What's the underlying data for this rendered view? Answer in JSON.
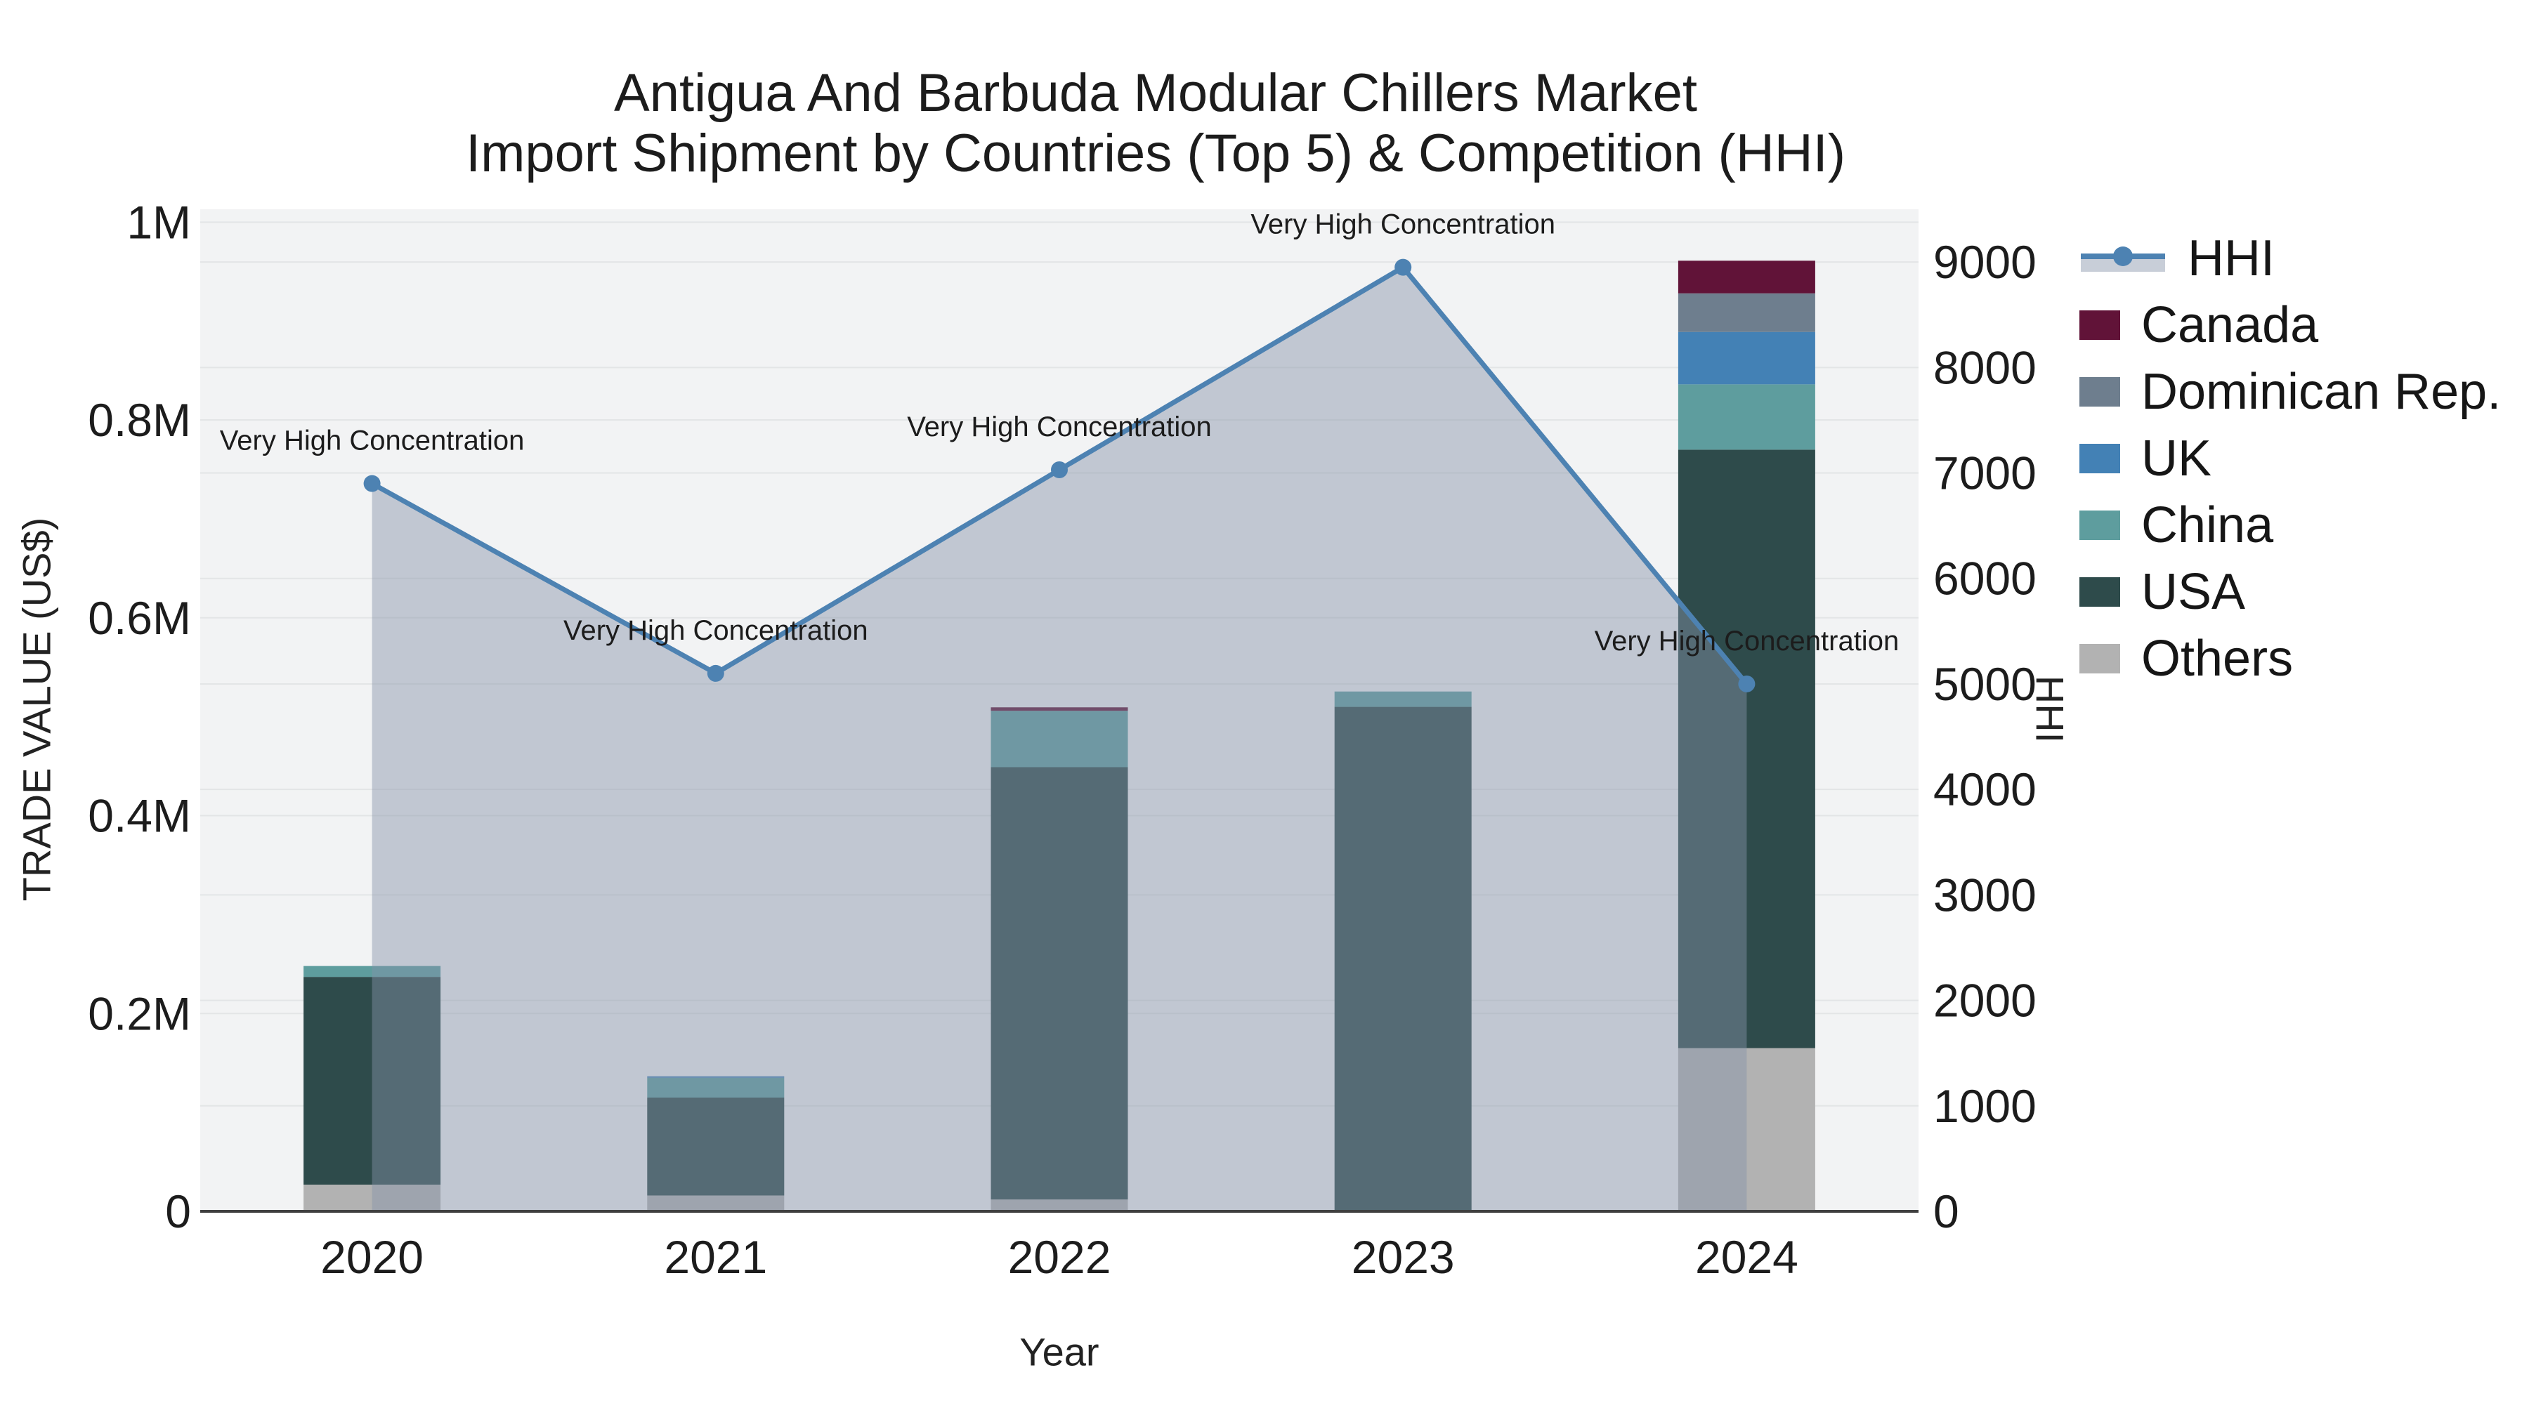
{
  "title": {
    "line1": "Antigua And Barbuda Modular Chillers Market",
    "line2": "Import Shipment by Countries (Top 5) & Competition (HHI)"
  },
  "axes": {
    "x": {
      "title": "Year"
    },
    "y_left": {
      "title": "TRADE VALUE (US$)",
      "ticks": [
        {
          "label": "0",
          "value": 0
        },
        {
          "label": "0.2M",
          "value": 200000
        },
        {
          "label": "0.4M",
          "value": 400000
        },
        {
          "label": "0.6M",
          "value": 600000
        },
        {
          "label": "0.8M",
          "value": 800000
        },
        {
          "label": "1M",
          "value": 1000000
        }
      ]
    },
    "y_right": {
      "title": "HHI",
      "ticks": [
        {
          "label": "0",
          "value": 0
        },
        {
          "label": "1000",
          "value": 1000
        },
        {
          "label": "2000",
          "value": 2000
        },
        {
          "label": "3000",
          "value": 3000
        },
        {
          "label": "4000",
          "value": 4000
        },
        {
          "label": "5000",
          "value": 5000
        },
        {
          "label": "6000",
          "value": 6000
        },
        {
          "label": "7000",
          "value": 7000
        },
        {
          "label": "8000",
          "value": 8000
        },
        {
          "label": "9000",
          "value": 9000
        }
      ]
    }
  },
  "legend": {
    "items": [
      {
        "label": "HHI",
        "color": "#4d82b2",
        "type": "line"
      },
      {
        "label": "Canada",
        "color": "#611338",
        "type": "box"
      },
      {
        "label": "Dominican Rep.",
        "color": "#6e7e8e",
        "type": "box"
      },
      {
        "label": "UK",
        "color": "#4381b5",
        "type": "box"
      },
      {
        "label": "China",
        "color": "#5e9d9e",
        "type": "box"
      },
      {
        "label": "USA",
        "color": "#2e4b4b",
        "type": "box"
      },
      {
        "label": "Others",
        "color": "#b2b2b2",
        "type": "box"
      }
    ]
  },
  "chart_data": {
    "type": "bar+line",
    "title": "Antigua And Barbuda Modular Chillers Market Import Shipment by Countries (Top 5) & Competition (HHI)",
    "xlabel": "Year",
    "ylabel": "TRADE VALUE (US$)",
    "y2label": "HHI",
    "categories": [
      "2020",
      "2021",
      "2022",
      "2023",
      "2024"
    ],
    "ylim": [
      0,
      1013000
    ],
    "y2lim": [
      0,
      9500
    ],
    "grid": true,
    "legend_position": "right",
    "stack_order_bottom_to_top": [
      "Others",
      "USA",
      "China",
      "UK",
      "Dominican Rep.",
      "Canada"
    ],
    "series": [
      {
        "name": "Canada",
        "color": "#611338",
        "values": [
          0,
          0,
          3500,
          0,
          33000
        ]
      },
      {
        "name": "Dominican Rep.",
        "color": "#6e7e8e",
        "values": [
          0,
          0,
          0,
          0,
          39000
        ]
      },
      {
        "name": "UK",
        "color": "#4381b5",
        "values": [
          0,
          1500,
          0,
          0,
          53000
        ]
      },
      {
        "name": "China",
        "color": "#5e9d9e",
        "values": [
          11000,
          20000,
          57000,
          15500,
          66000
        ]
      },
      {
        "name": "USA",
        "color": "#2e4b4b",
        "values": [
          210000,
          99000,
          437000,
          510000,
          605000
        ]
      },
      {
        "name": "Others",
        "color": "#b2b2b2",
        "values": [
          27000,
          16000,
          12000,
          0,
          165000
        ]
      }
    ],
    "line_series": {
      "name": "HHI",
      "axis": "right",
      "color": "#4d82b2",
      "area_fill": "rgba(132,146,168,0.45)",
      "values": [
        6900,
        5100,
        7030,
        8950,
        5000
      ]
    },
    "annotations": [
      {
        "x": "2020",
        "text": "Very High Concentration"
      },
      {
        "x": "2021",
        "text": "Very High Concentration"
      },
      {
        "x": "2022",
        "text": "Very High Concentration"
      },
      {
        "x": "2023",
        "text": "Very High Concentration"
      },
      {
        "x": "2024",
        "text": "Very High Concentration"
      }
    ],
    "colors": {
      "plot_background": "#f2f3f4",
      "gridline": "#e3e5e6",
      "axis_line": "#3f3f3f",
      "text": "#1c1c1c"
    }
  }
}
